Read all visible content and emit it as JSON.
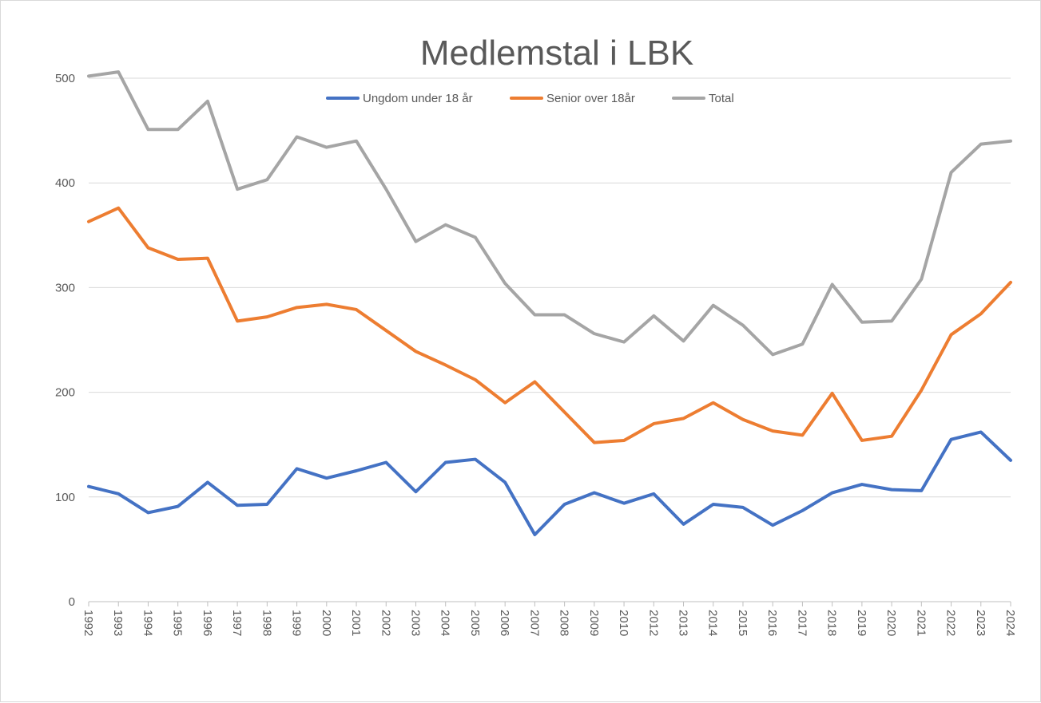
{
  "chart_data": {
    "type": "line",
    "title": "Medlemstal i LBK",
    "xlabel": "",
    "ylabel": "",
    "ylim": [
      0,
      500
    ],
    "yticks": [
      0,
      100,
      200,
      300,
      400,
      500
    ],
    "grid": true,
    "legend_position": "top-center",
    "categories": [
      "1992",
      "1993",
      "1994",
      "1995",
      "1996",
      "1997",
      "1998",
      "1999",
      "2000",
      "2001",
      "2002",
      "2003",
      "2004",
      "2005",
      "2006",
      "2007",
      "2008",
      "2009",
      "2010",
      "2012",
      "2013",
      "2014",
      "2015",
      "2016",
      "2017",
      "2018",
      "2019",
      "2020",
      "2021",
      "2022",
      "2023",
      "2024"
    ],
    "series": [
      {
        "name": "Ungdom under 18 år",
        "color": "#4472c4",
        "values": [
          110,
          103,
          85,
          91,
          114,
          92,
          93,
          127,
          118,
          125,
          133,
          105,
          133,
          136,
          114,
          64,
          93,
          104,
          94,
          103,
          74,
          93,
          90,
          73,
          87,
          104,
          112,
          107,
          106,
          155,
          162,
          135
        ]
      },
      {
        "name": "Senior over 18år",
        "color": "#ed7d31",
        "values": [
          363,
          376,
          338,
          327,
          328,
          268,
          272,
          281,
          284,
          279,
          259,
          239,
          226,
          212,
          190,
          210,
          181,
          152,
          154,
          170,
          175,
          190,
          174,
          163,
          159,
          199,
          154,
          158,
          202,
          255,
          275,
          305
        ]
      },
      {
        "name": "Total",
        "color": "#a5a5a5",
        "values": [
          502,
          506,
          451,
          451,
          478,
          394,
          403,
          444,
          434,
          440,
          394,
          344,
          360,
          348,
          304,
          274,
          274,
          256,
          248,
          273,
          249,
          283,
          264,
          236,
          246,
          303,
          267,
          268,
          308,
          410,
          437,
          440
        ]
      }
    ]
  }
}
